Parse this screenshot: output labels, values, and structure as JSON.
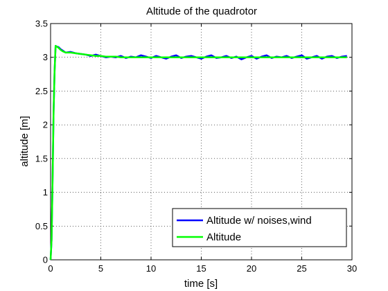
{
  "chart_data": {
    "type": "line",
    "title": "Altitude of the quadrotor",
    "xlabel": "time [s]",
    "ylabel": "altitude [m]",
    "xlim": [
      0,
      30
    ],
    "ylim": [
      0,
      3.5
    ],
    "xticks": [
      "0",
      "5",
      "10",
      "15",
      "20",
      "25",
      "30"
    ],
    "yticks": [
      "0",
      "0.5",
      "1",
      "1.5",
      "2",
      "2.5",
      "3",
      "3.5"
    ],
    "grid": true,
    "legend_position": "bottom-right",
    "series": [
      {
        "name": "Altitude w/ noises,wind",
        "color": "#0000ff",
        "x": [
          0,
          0.1,
          0.2,
          0.3,
          0.4,
          0.5,
          0.6,
          0.8,
          1.0,
          1.2,
          1.5,
          2.0,
          2.5,
          3.0,
          3.5,
          4.0,
          4.5,
          5.0,
          5.5,
          6.0,
          6.5,
          7.0,
          7.5,
          8.0,
          8.5,
          9.0,
          9.5,
          10.0,
          10.5,
          11.0,
          11.5,
          12.0,
          12.5,
          13.0,
          13.5,
          14.0,
          14.5,
          15.0,
          15.5,
          16.0,
          16.5,
          17.0,
          17.5,
          18.0,
          18.5,
          19.0,
          19.5,
          20.0,
          20.5,
          21.0,
          21.5,
          22.0,
          22.5,
          23.0,
          23.5,
          24.0,
          24.5,
          25.0,
          25.5,
          26.0,
          26.5,
          27.0,
          27.5,
          28.0,
          28.5,
          29.0,
          29.5
        ],
        "y": [
          0,
          0.3,
          1.2,
          2.2,
          2.8,
          3.17,
          3.16,
          3.15,
          3.12,
          3.1,
          3.07,
          3.08,
          3.06,
          3.05,
          3.04,
          3.02,
          3.04,
          3.02,
          3.0,
          3.01,
          3.0,
          3.02,
          2.99,
          3.01,
          3.0,
          3.03,
          3.01,
          2.99,
          3.02,
          3.0,
          2.98,
          3.01,
          3.03,
          2.99,
          3.01,
          3.02,
          3.0,
          2.98,
          3.01,
          3.03,
          2.99,
          3.0,
          3.02,
          2.99,
          3.01,
          2.97,
          3.0,
          3.02,
          2.98,
          3.01,
          3.03,
          2.99,
          3.01,
          3.0,
          3.02,
          2.99,
          3.01,
          3.03,
          2.98,
          3.0,
          3.02,
          2.98,
          3.01,
          3.02,
          2.99,
          3.01,
          3.02
        ]
      },
      {
        "name": "Altitude",
        "color": "#00ff00",
        "x": [
          0,
          0.1,
          0.2,
          0.3,
          0.4,
          0.5,
          0.6,
          0.8,
          1.0,
          1.2,
          1.5,
          2.0,
          2.5,
          3.0,
          3.5,
          4.0,
          4.5,
          5.0,
          5.5,
          6.0,
          6.5,
          7.0,
          7.5,
          8.0,
          8.5,
          9.0,
          9.5,
          10.0,
          10.5,
          11.0,
          11.5,
          12.0,
          12.5,
          13.0,
          13.5,
          14.0,
          14.5,
          15.0,
          15.5,
          16.0,
          16.5,
          17.0,
          17.5,
          18.0,
          18.5,
          19.0,
          19.5,
          20.0,
          20.5,
          21.0,
          21.5,
          22.0,
          22.5,
          23.0,
          23.5,
          24.0,
          24.5,
          25.0,
          25.5,
          26.0,
          26.5,
          27.0,
          27.5,
          28.0,
          28.5,
          29.0,
          29.5
        ],
        "y": [
          0,
          0.3,
          1.2,
          2.2,
          2.8,
          3.17,
          3.16,
          3.14,
          3.11,
          3.09,
          3.07,
          3.07,
          3.06,
          3.05,
          3.04,
          3.03,
          3.02,
          3.02,
          3.01,
          3.01,
          3.01,
          3.0,
          3.0,
          3.0,
          3.0,
          3.0,
          3.0,
          3.0,
          3.0,
          3.0,
          3.0,
          3.0,
          3.0,
          3.0,
          3.0,
          3.0,
          3.0,
          3.0,
          3.0,
          3.0,
          3.0,
          3.0,
          3.0,
          3.0,
          3.0,
          3.0,
          3.0,
          3.0,
          3.0,
          3.0,
          3.0,
          3.0,
          3.0,
          3.0,
          3.0,
          3.0,
          3.0,
          3.0,
          3.0,
          3.0,
          3.0,
          3.0,
          3.0,
          3.0,
          3.0,
          3.0,
          3.0
        ]
      }
    ]
  }
}
